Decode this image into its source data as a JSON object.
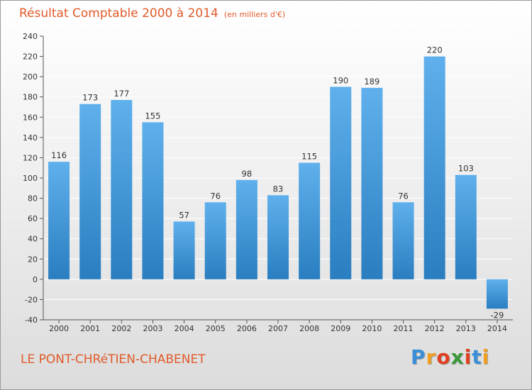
{
  "title": "Résultat Comptable 2000 à 2014",
  "unit_note": "(en milliers d'€)",
  "commune": "LE PONT-CHRéTIEN-CHABENET",
  "logo": {
    "letters": [
      "P",
      "r",
      "o",
      "x",
      "i",
      "t",
      "i"
    ],
    "colors": [
      "#3a8fd6",
      "#f0a020",
      "#e04020",
      "#3a9a3a",
      "#e04020",
      "#3a8fd6",
      "#f0a020"
    ]
  },
  "colors": {
    "accent": "#e05a2a",
    "bar_top": "#5fb0ec",
    "bar_bottom": "#2a7ec0"
  },
  "chart_data": {
    "type": "bar",
    "categories": [
      "2000",
      "2001",
      "2002",
      "2003",
      "2004",
      "2005",
      "2006",
      "2007",
      "2008",
      "2009",
      "2010",
      "2011",
      "2012",
      "2013",
      "2014"
    ],
    "values": [
      116,
      173,
      177,
      155,
      57,
      76,
      98,
      83,
      115,
      190,
      189,
      76,
      220,
      103,
      -29
    ],
    "ylim": [
      -40,
      240
    ],
    "yticks": [
      -40,
      -20,
      0,
      20,
      40,
      60,
      80,
      100,
      120,
      140,
      160,
      180,
      200,
      220,
      240
    ],
    "grid": true,
    "xlabel": "",
    "ylabel": ""
  }
}
